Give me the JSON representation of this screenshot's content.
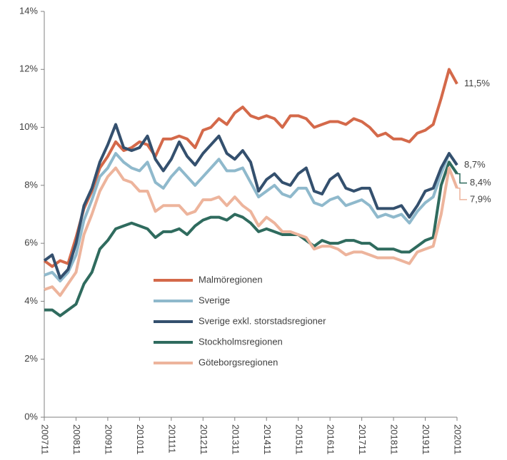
{
  "chart_data": {
    "type": "line",
    "x": [
      2007.833,
      2008.083,
      2008.333,
      2008.583,
      2008.833,
      2009.083,
      2009.333,
      2009.583,
      2009.833,
      2010.083,
      2010.333,
      2010.583,
      2010.833,
      2011.083,
      2011.333,
      2011.583,
      2011.833,
      2012.083,
      2012.333,
      2012.583,
      2012.833,
      2013.083,
      2013.333,
      2013.583,
      2013.833,
      2014.083,
      2014.333,
      2014.583,
      2014.833,
      2015.083,
      2015.333,
      2015.583,
      2015.833,
      2016.083,
      2016.333,
      2016.583,
      2016.833,
      2017.083,
      2017.333,
      2017.583,
      2017.833,
      2018.083,
      2018.333,
      2018.583,
      2018.833,
      2019.083,
      2019.333,
      2019.583,
      2019.833,
      2020.083,
      2020.333,
      2020.583,
      2020.833
    ],
    "series": [
      {
        "name": "Malmöregionen",
        "color": "#d4694a",
        "end_label": "11,5%",
        "values": [
          5.4,
          5.2,
          5.4,
          5.3,
          6.2,
          7.2,
          7.8,
          8.6,
          9.0,
          9.5,
          9.2,
          9.3,
          9.5,
          9.4,
          9.0,
          9.6,
          9.6,
          9.7,
          9.6,
          9.3,
          9.9,
          10.0,
          10.3,
          10.1,
          10.5,
          10.7,
          10.4,
          10.3,
          10.4,
          10.3,
          10.0,
          10.4,
          10.4,
          10.3,
          10.0,
          10.1,
          10.2,
          10.2,
          10.1,
          10.3,
          10.2,
          10.0,
          9.7,
          9.8,
          9.6,
          9.6,
          9.5,
          9.8,
          9.9,
          10.1,
          11.0,
          12.0,
          11.5
        ]
      },
      {
        "name": "Sverige",
        "color": "#8fb9cc",
        "end_label": "8,7%",
        "values": [
          4.9,
          5.0,
          4.7,
          5.0,
          5.6,
          6.8,
          7.5,
          8.3,
          8.6,
          9.1,
          8.8,
          8.6,
          8.5,
          8.8,
          8.1,
          7.9,
          8.3,
          8.6,
          8.3,
          8.0,
          8.3,
          8.6,
          8.9,
          8.5,
          8.5,
          8.6,
          8.1,
          7.6,
          7.8,
          8.0,
          7.7,
          7.6,
          7.9,
          7.9,
          7.4,
          7.3,
          7.5,
          7.6,
          7.3,
          7.4,
          7.5,
          7.3,
          6.9,
          7.0,
          6.9,
          7.0,
          6.7,
          7.1,
          7.4,
          7.6,
          8.4,
          9.1,
          8.7
        ]
      },
      {
        "name": "Sverige exkl. storstadsregioner",
        "color": "#34506e",
        "values": [
          5.4,
          5.6,
          4.8,
          5.1,
          6.0,
          7.3,
          7.9,
          8.8,
          9.4,
          10.1,
          9.3,
          9.2,
          9.3,
          9.7,
          8.9,
          8.5,
          8.9,
          9.5,
          9.0,
          8.7,
          9.1,
          9.4,
          9.7,
          9.1,
          8.9,
          9.2,
          8.8,
          7.8,
          8.2,
          8.4,
          8.1,
          8.0,
          8.4,
          8.6,
          7.8,
          7.7,
          8.2,
          8.4,
          7.9,
          7.8,
          7.9,
          7.9,
          7.2,
          7.2,
          7.2,
          7.3,
          6.9,
          7.3,
          7.8,
          7.9,
          8.6,
          9.1,
          8.7
        ]
      },
      {
        "name": "Stockholmsregionen",
        "color": "#2f6b5e",
        "end_label": "8,4%",
        "values": [
          3.7,
          3.7,
          3.5,
          3.7,
          3.9,
          4.6,
          5.0,
          5.8,
          6.1,
          6.5,
          6.6,
          6.7,
          6.6,
          6.5,
          6.2,
          6.4,
          6.4,
          6.5,
          6.3,
          6.6,
          6.8,
          6.9,
          6.9,
          6.8,
          7.0,
          6.9,
          6.7,
          6.4,
          6.5,
          6.4,
          6.3,
          6.3,
          6.3,
          6.1,
          5.9,
          6.1,
          6.0,
          6.0,
          6.1,
          6.1,
          6.0,
          6.0,
          5.8,
          5.8,
          5.8,
          5.7,
          5.7,
          5.9,
          6.1,
          6.2,
          8.0,
          8.8,
          8.4
        ]
      },
      {
        "name": "Göteborgsregionen",
        "color": "#edb49c",
        "end_label": "7,9%",
        "values": [
          4.4,
          4.5,
          4.2,
          4.6,
          5.0,
          6.3,
          7.0,
          7.8,
          8.3,
          8.6,
          8.2,
          8.1,
          7.8,
          7.8,
          7.1,
          7.3,
          7.3,
          7.3,
          7.0,
          7.1,
          7.5,
          7.5,
          7.6,
          7.3,
          7.6,
          7.3,
          7.1,
          6.6,
          6.9,
          6.7,
          6.4,
          6.4,
          6.3,
          6.2,
          5.8,
          5.9,
          5.9,
          5.8,
          5.6,
          5.7,
          5.7,
          5.6,
          5.5,
          5.5,
          5.5,
          5.4,
          5.3,
          5.7,
          5.8,
          5.9,
          7.0,
          8.6,
          7.9
        ]
      }
    ],
    "xlim": [
      2007.833,
      2020.833
    ],
    "xticks": [
      {
        "value": 2007.833,
        "label": "200711"
      },
      {
        "value": 2008.833,
        "label": "200811"
      },
      {
        "value": 2009.833,
        "label": "200911"
      },
      {
        "value": 2010.833,
        "label": "201011"
      },
      {
        "value": 2011.833,
        "label": "201111"
      },
      {
        "value": 2012.833,
        "label": "201211"
      },
      {
        "value": 2013.833,
        "label": "201311"
      },
      {
        "value": 2014.833,
        "label": "201411"
      },
      {
        "value": 2015.833,
        "label": "201511"
      },
      {
        "value": 2016.833,
        "label": "201611"
      },
      {
        "value": 2017.833,
        "label": "201711"
      },
      {
        "value": 2018.833,
        "label": "201811"
      },
      {
        "value": 2019.833,
        "label": "201911"
      },
      {
        "value": 2020.833,
        "label": "202011"
      }
    ],
    "ylim": [
      0,
      14
    ],
    "yticks": [
      {
        "value": 0,
        "label": "0%"
      },
      {
        "value": 2,
        "label": "2%"
      },
      {
        "value": 4,
        "label": "4%"
      },
      {
        "value": 6,
        "label": "6%"
      },
      {
        "value": 8,
        "label": "8%"
      },
      {
        "value": 10,
        "label": "10%"
      },
      {
        "value": 12,
        "label": "12%"
      },
      {
        "value": 14,
        "label": "14%"
      }
    ],
    "grid": false,
    "legend": "center"
  }
}
